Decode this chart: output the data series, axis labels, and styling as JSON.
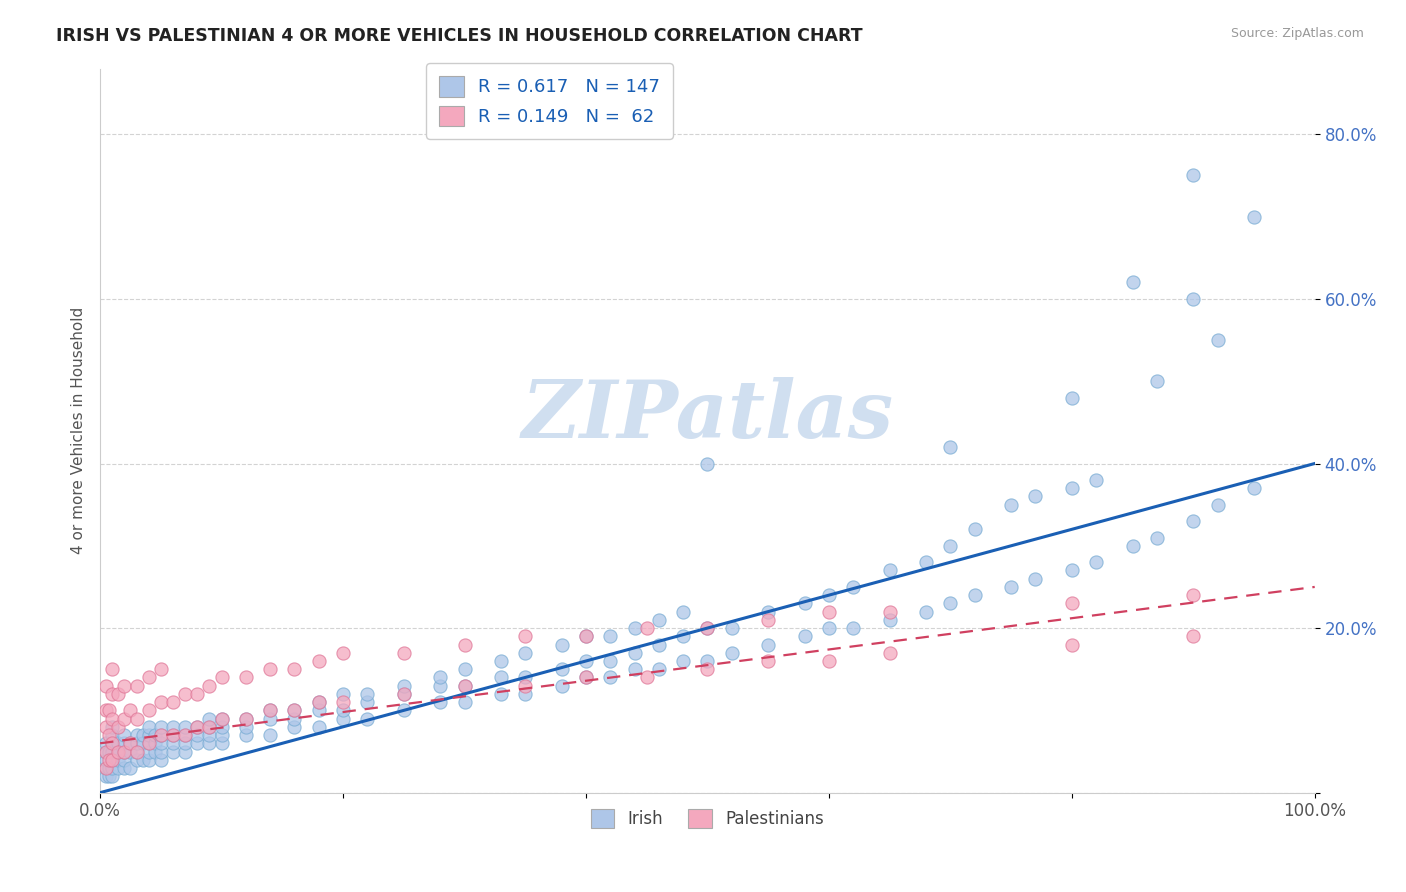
{
  "title": "IRISH VS PALESTINIAN 4 OR MORE VEHICLES IN HOUSEHOLD CORRELATION CHART",
  "source": "Source: ZipAtlas.com",
  "ylabel": "4 or more Vehicles in Household",
  "xlim": [
    0,
    1.0
  ],
  "ylim": [
    0,
    0.88
  ],
  "xticks": [
    0.0,
    0.2,
    0.4,
    0.6,
    0.8,
    1.0
  ],
  "xticklabels": [
    "0.0%",
    "",
    "",
    "",
    "",
    "100.0%"
  ],
  "yticks": [
    0.0,
    0.2,
    0.4,
    0.6,
    0.8
  ],
  "yticklabels": [
    "",
    "20.0%",
    "40.0%",
    "60.0%",
    "80.0%"
  ],
  "irish_color": "#aec6e8",
  "irish_edge_color": "#7aadd4",
  "palestinian_color": "#f4a8be",
  "palestinian_edge_color": "#e07898",
  "irish_line_color": "#1a5fb4",
  "palestinian_line_color": "#d04060",
  "legend_R_irish": "0.617",
  "legend_N_irish": "147",
  "legend_R_palestinian": "0.149",
  "legend_N_palestinian": "62",
  "watermark": "ZIPatlas",
  "watermark_color": "#d0dff0",
  "background_color": "#ffffff",
  "grid_color": "#c8c8c8",
  "irish_scatter": [
    [
      0.005,
      0.02
    ],
    [
      0.005,
      0.03
    ],
    [
      0.005,
      0.04
    ],
    [
      0.005,
      0.05
    ],
    [
      0.005,
      0.06
    ],
    [
      0.007,
      0.02
    ],
    [
      0.007,
      0.03
    ],
    [
      0.007,
      0.05
    ],
    [
      0.01,
      0.02
    ],
    [
      0.01,
      0.03
    ],
    [
      0.01,
      0.04
    ],
    [
      0.01,
      0.05
    ],
    [
      0.01,
      0.06
    ],
    [
      0.01,
      0.07
    ],
    [
      0.01,
      0.08
    ],
    [
      0.015,
      0.03
    ],
    [
      0.015,
      0.04
    ],
    [
      0.015,
      0.05
    ],
    [
      0.015,
      0.06
    ],
    [
      0.02,
      0.03
    ],
    [
      0.02,
      0.04
    ],
    [
      0.02,
      0.05
    ],
    [
      0.02,
      0.06
    ],
    [
      0.02,
      0.07
    ],
    [
      0.025,
      0.03
    ],
    [
      0.025,
      0.05
    ],
    [
      0.025,
      0.06
    ],
    [
      0.03,
      0.04
    ],
    [
      0.03,
      0.05
    ],
    [
      0.03,
      0.06
    ],
    [
      0.03,
      0.07
    ],
    [
      0.035,
      0.04
    ],
    [
      0.035,
      0.06
    ],
    [
      0.035,
      0.07
    ],
    [
      0.04,
      0.04
    ],
    [
      0.04,
      0.05
    ],
    [
      0.04,
      0.06
    ],
    [
      0.04,
      0.07
    ],
    [
      0.04,
      0.08
    ],
    [
      0.045,
      0.05
    ],
    [
      0.045,
      0.06
    ],
    [
      0.045,
      0.07
    ],
    [
      0.05,
      0.04
    ],
    [
      0.05,
      0.05
    ],
    [
      0.05,
      0.06
    ],
    [
      0.05,
      0.07
    ],
    [
      0.05,
      0.08
    ],
    [
      0.06,
      0.05
    ],
    [
      0.06,
      0.06
    ],
    [
      0.06,
      0.07
    ],
    [
      0.06,
      0.08
    ],
    [
      0.07,
      0.05
    ],
    [
      0.07,
      0.06
    ],
    [
      0.07,
      0.07
    ],
    [
      0.07,
      0.08
    ],
    [
      0.08,
      0.06
    ],
    [
      0.08,
      0.07
    ],
    [
      0.08,
      0.08
    ],
    [
      0.09,
      0.06
    ],
    [
      0.09,
      0.07
    ],
    [
      0.09,
      0.08
    ],
    [
      0.09,
      0.09
    ],
    [
      0.1,
      0.06
    ],
    [
      0.1,
      0.07
    ],
    [
      0.1,
      0.08
    ],
    [
      0.1,
      0.09
    ],
    [
      0.12,
      0.07
    ],
    [
      0.12,
      0.08
    ],
    [
      0.12,
      0.09
    ],
    [
      0.14,
      0.07
    ],
    [
      0.14,
      0.09
    ],
    [
      0.14,
      0.1
    ],
    [
      0.16,
      0.08
    ],
    [
      0.16,
      0.09
    ],
    [
      0.16,
      0.1
    ],
    [
      0.18,
      0.08
    ],
    [
      0.18,
      0.1
    ],
    [
      0.18,
      0.11
    ],
    [
      0.2,
      0.09
    ],
    [
      0.2,
      0.1
    ],
    [
      0.2,
      0.12
    ],
    [
      0.22,
      0.09
    ],
    [
      0.22,
      0.11
    ],
    [
      0.22,
      0.12
    ],
    [
      0.25,
      0.1
    ],
    [
      0.25,
      0.12
    ],
    [
      0.25,
      0.13
    ],
    [
      0.28,
      0.11
    ],
    [
      0.28,
      0.13
    ],
    [
      0.28,
      0.14
    ],
    [
      0.3,
      0.11
    ],
    [
      0.3,
      0.13
    ],
    [
      0.3,
      0.15
    ],
    [
      0.33,
      0.12
    ],
    [
      0.33,
      0.14
    ],
    [
      0.33,
      0.16
    ],
    [
      0.35,
      0.12
    ],
    [
      0.35,
      0.14
    ],
    [
      0.35,
      0.17
    ],
    [
      0.38,
      0.13
    ],
    [
      0.38,
      0.15
    ],
    [
      0.38,
      0.18
    ],
    [
      0.4,
      0.14
    ],
    [
      0.4,
      0.16
    ],
    [
      0.4,
      0.19
    ],
    [
      0.42,
      0.14
    ],
    [
      0.42,
      0.16
    ],
    [
      0.42,
      0.19
    ],
    [
      0.44,
      0.15
    ],
    [
      0.44,
      0.17
    ],
    [
      0.44,
      0.2
    ],
    [
      0.46,
      0.15
    ],
    [
      0.46,
      0.18
    ],
    [
      0.46,
      0.21
    ],
    [
      0.48,
      0.16
    ],
    [
      0.48,
      0.19
    ],
    [
      0.48,
      0.22
    ],
    [
      0.5,
      0.16
    ],
    [
      0.5,
      0.2
    ],
    [
      0.5,
      0.4
    ],
    [
      0.52,
      0.17
    ],
    [
      0.52,
      0.2
    ],
    [
      0.55,
      0.18
    ],
    [
      0.55,
      0.22
    ],
    [
      0.58,
      0.19
    ],
    [
      0.58,
      0.23
    ],
    [
      0.6,
      0.2
    ],
    [
      0.6,
      0.24
    ],
    [
      0.62,
      0.2
    ],
    [
      0.62,
      0.25
    ],
    [
      0.65,
      0.21
    ],
    [
      0.65,
      0.27
    ],
    [
      0.68,
      0.22
    ],
    [
      0.68,
      0.28
    ],
    [
      0.7,
      0.23
    ],
    [
      0.7,
      0.3
    ],
    [
      0.7,
      0.42
    ],
    [
      0.72,
      0.24
    ],
    [
      0.72,
      0.32
    ],
    [
      0.75,
      0.25
    ],
    [
      0.75,
      0.35
    ],
    [
      0.77,
      0.26
    ],
    [
      0.77,
      0.36
    ],
    [
      0.8,
      0.27
    ],
    [
      0.8,
      0.37
    ],
    [
      0.8,
      0.48
    ],
    [
      0.82,
      0.28
    ],
    [
      0.82,
      0.38
    ],
    [
      0.85,
      0.3
    ],
    [
      0.85,
      0.62
    ],
    [
      0.87,
      0.31
    ],
    [
      0.87,
      0.5
    ],
    [
      0.9,
      0.33
    ],
    [
      0.9,
      0.6
    ],
    [
      0.9,
      0.75
    ],
    [
      0.92,
      0.35
    ],
    [
      0.92,
      0.55
    ],
    [
      0.95,
      0.37
    ],
    [
      0.95,
      0.7
    ]
  ],
  "palestinian_scatter": [
    [
      0.005,
      0.03
    ],
    [
      0.005,
      0.05
    ],
    [
      0.005,
      0.08
    ],
    [
      0.005,
      0.1
    ],
    [
      0.005,
      0.13
    ],
    [
      0.007,
      0.04
    ],
    [
      0.007,
      0.07
    ],
    [
      0.007,
      0.1
    ],
    [
      0.01,
      0.04
    ],
    [
      0.01,
      0.06
    ],
    [
      0.01,
      0.09
    ],
    [
      0.01,
      0.12
    ],
    [
      0.01,
      0.15
    ],
    [
      0.015,
      0.05
    ],
    [
      0.015,
      0.08
    ],
    [
      0.015,
      0.12
    ],
    [
      0.02,
      0.05
    ],
    [
      0.02,
      0.09
    ],
    [
      0.02,
      0.13
    ],
    [
      0.025,
      0.06
    ],
    [
      0.025,
      0.1
    ],
    [
      0.03,
      0.05
    ],
    [
      0.03,
      0.09
    ],
    [
      0.03,
      0.13
    ],
    [
      0.04,
      0.06
    ],
    [
      0.04,
      0.1
    ],
    [
      0.04,
      0.14
    ],
    [
      0.05,
      0.07
    ],
    [
      0.05,
      0.11
    ],
    [
      0.05,
      0.15
    ],
    [
      0.06,
      0.07
    ],
    [
      0.06,
      0.11
    ],
    [
      0.07,
      0.07
    ],
    [
      0.07,
      0.12
    ],
    [
      0.08,
      0.08
    ],
    [
      0.08,
      0.12
    ],
    [
      0.09,
      0.08
    ],
    [
      0.09,
      0.13
    ],
    [
      0.1,
      0.09
    ],
    [
      0.1,
      0.14
    ],
    [
      0.12,
      0.09
    ],
    [
      0.12,
      0.14
    ],
    [
      0.14,
      0.1
    ],
    [
      0.14,
      0.15
    ],
    [
      0.16,
      0.1
    ],
    [
      0.16,
      0.15
    ],
    [
      0.18,
      0.11
    ],
    [
      0.18,
      0.16
    ],
    [
      0.2,
      0.11
    ],
    [
      0.2,
      0.17
    ],
    [
      0.25,
      0.12
    ],
    [
      0.25,
      0.17
    ],
    [
      0.3,
      0.13
    ],
    [
      0.3,
      0.18
    ],
    [
      0.35,
      0.13
    ],
    [
      0.35,
      0.19
    ],
    [
      0.4,
      0.14
    ],
    [
      0.4,
      0.19
    ],
    [
      0.45,
      0.14
    ],
    [
      0.45,
      0.2
    ],
    [
      0.5,
      0.15
    ],
    [
      0.5,
      0.2
    ],
    [
      0.55,
      0.16
    ],
    [
      0.55,
      0.21
    ],
    [
      0.6,
      0.16
    ],
    [
      0.6,
      0.22
    ],
    [
      0.65,
      0.17
    ],
    [
      0.65,
      0.22
    ],
    [
      0.8,
      0.18
    ],
    [
      0.8,
      0.23
    ],
    [
      0.9,
      0.19
    ],
    [
      0.9,
      0.24
    ]
  ]
}
